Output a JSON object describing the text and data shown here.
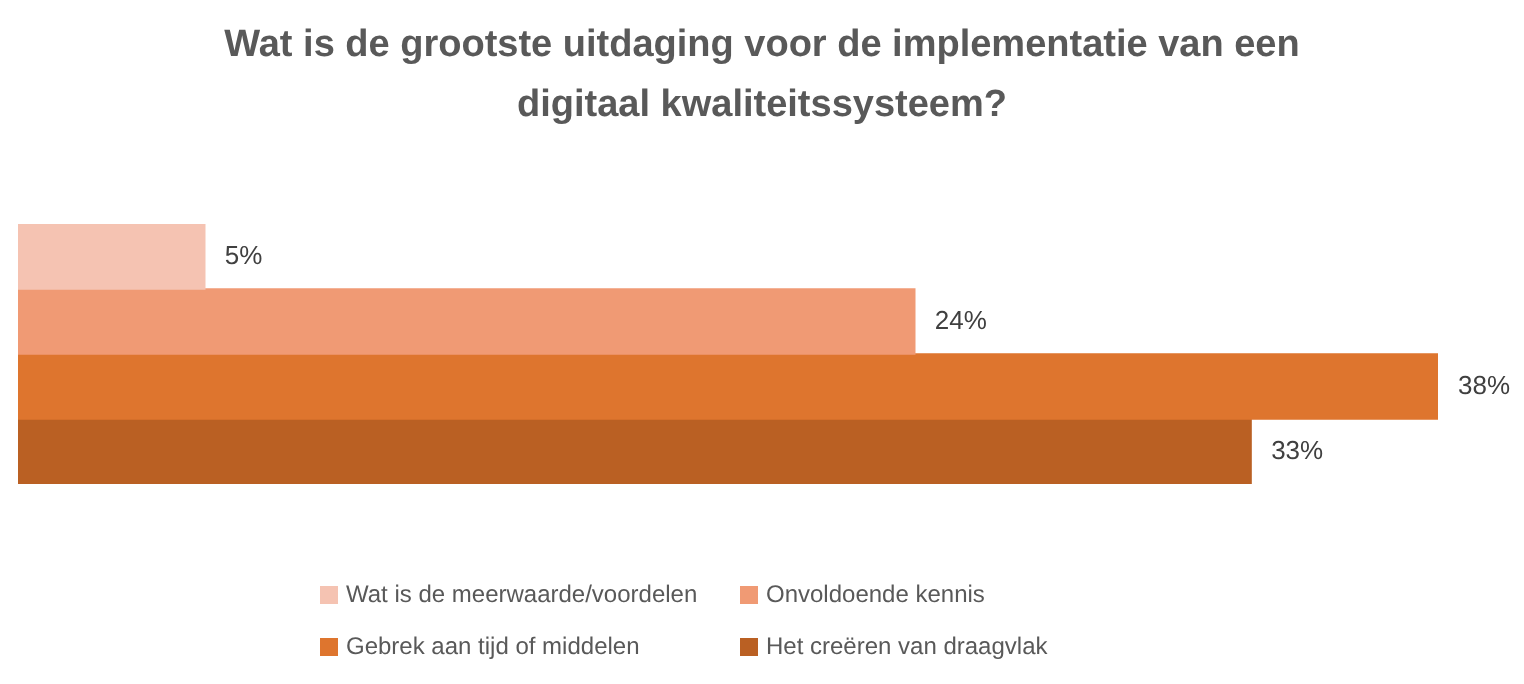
{
  "chart_data": {
    "type": "bar",
    "orientation": "horizontal",
    "title": "Wat is de grootste uitdaging voor de implementatie van een digitaal kwaliteitssysteem?",
    "categories": [
      null
    ],
    "legend": "bottom",
    "tick_labels": false,
    "series": [
      {
        "name": "Wat is de meerwaarde/voordelen",
        "color": "#f5c3b2",
        "values": [
          5
        ],
        "value_labels": [
          "5%"
        ]
      },
      {
        "name": "Onvoldoende kennis",
        "color": "#f09a74",
        "values": [
          24
        ],
        "value_labels": [
          "24%"
        ]
      },
      {
        "name": "Gebrek aan tijd of middelen",
        "color": "#de752e",
        "values": [
          38
        ],
        "value_labels": [
          "38%"
        ]
      },
      {
        "name": "Het creëren van draagvlak",
        "color": "#ba6023",
        "values": [
          33
        ],
        "value_labels": [
          "33%"
        ]
      }
    ]
  }
}
